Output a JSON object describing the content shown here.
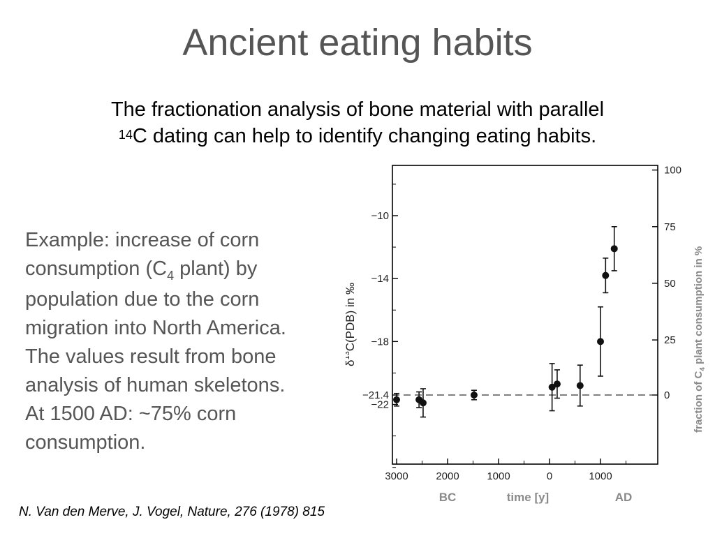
{
  "slide": {
    "title": "Ancient eating habits",
    "subtitle_line1": "The fractionation analysis of bone material with parallel",
    "subtitle_sup": "14",
    "subtitle_line2": "C dating can help to identify changing eating habits.",
    "example": {
      "line1": "Example: increase of corn",
      "line2_pre": "consumption (C",
      "line2_sub": "4",
      "line2_post": " plant) by",
      "line3": "population due to the corn",
      "line4": "migration into North America.",
      "line5": "The values result from bone",
      "line6": "analysis of human skeletons.",
      "line7": "At 1500 AD:  ~75% corn",
      "line8": "consumption."
    },
    "citation": "N. Van den Merve, J. Vogel, Nature, 276 (1978) 815"
  },
  "chart_data": {
    "type": "scatter",
    "title": "",
    "ylabel": "δ13C(PDB) in ‰",
    "ylabel_right": "fraction of C4 plant consumption in %",
    "xlabel": "time  [y]",
    "x_era_labels": [
      "BC",
      "AD"
    ],
    "xlim": [
      -3000,
      2000
    ],
    "ylim": [
      -26.5,
      -7
    ],
    "x_ticks": [
      -3000,
      -2000,
      -1000,
      0,
      1000
    ],
    "x_tick_labels": [
      "3000",
      "2000",
      "1000",
      "0",
      "1000"
    ],
    "y_ticks": [
      -10,
      -14,
      -18,
      -21.4,
      -22
    ],
    "y_tick_labels": [
      "−10",
      "−14",
      "−18",
      "−21.4",
      "−22"
    ],
    "right_ticks": [
      {
        "value": -7.1,
        "label": "100"
      },
      {
        "value": -10.7,
        "label": "75"
      },
      {
        "value": -14.3,
        "label": "50"
      },
      {
        "value": -17.9,
        "label": "25"
      },
      {
        "value": -21.4,
        "label": "0"
      }
    ],
    "reference_line": -21.4,
    "grid": false,
    "points": [
      {
        "x": -3000,
        "y": -21.7,
        "err": 0.4
      },
      {
        "x": -2560,
        "y": -21.7,
        "err": 0.5
      },
      {
        "x": -2480,
        "y": -21.9,
        "err": 0.9
      },
      {
        "x": -1480,
        "y": -21.4,
        "err": 0.3
      },
      {
        "x": 50,
        "y": -20.9,
        "err": 1.5
      },
      {
        "x": 150,
        "y": -20.7,
        "err": 0.9
      },
      {
        "x": 600,
        "y": -20.8,
        "err": 1.3
      },
      {
        "x": 1000,
        "y": -18.0,
        "err": 2.2
      },
      {
        "x": 1100,
        "y": -13.8,
        "err": 1.1
      },
      {
        "x": 1270,
        "y": -12.1,
        "err": 1.4
      }
    ]
  }
}
